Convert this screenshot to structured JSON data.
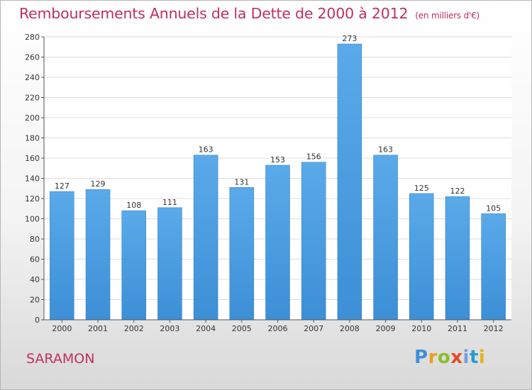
{
  "title": "Remboursements Annuels de la Dette de 2000 à 2012",
  "unit_note": "(en milliers d'€)",
  "city": "SARAMON",
  "logo": {
    "letters": [
      "P",
      "r",
      "o",
      "x",
      "i",
      "t",
      "i"
    ]
  },
  "colors": {
    "bar": "#3d8fd6",
    "bar_light": "#5aaaea",
    "title": "#c0305f"
  },
  "chart_data": {
    "type": "bar",
    "title": "Remboursements Annuels de la Dette de 2000 à 2012",
    "categories": [
      "2000",
      "2001",
      "2002",
      "2003",
      "2004",
      "2005",
      "2006",
      "2007",
      "2008",
      "2009",
      "2010",
      "2011",
      "2012"
    ],
    "values": [
      127,
      129,
      108,
      111,
      163,
      131,
      153,
      156,
      273,
      163,
      125,
      122,
      105
    ],
    "ylim": [
      0,
      280
    ],
    "yticks": [
      0,
      20,
      40,
      60,
      80,
      100,
      120,
      140,
      160,
      180,
      200,
      220,
      240,
      260,
      280
    ],
    "grid": true,
    "xlabel": "",
    "ylabel": ""
  }
}
